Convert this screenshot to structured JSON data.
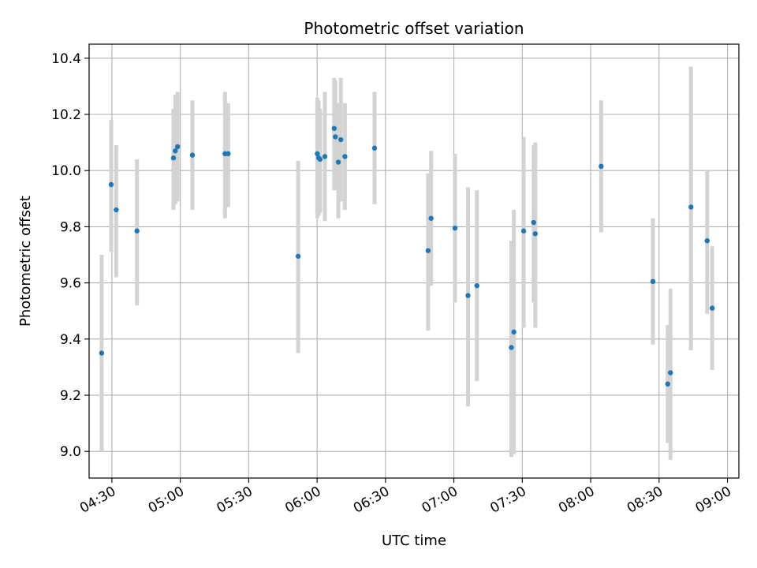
{
  "chart_data": {
    "type": "scatter",
    "title": "Photometric offset variation",
    "xlabel": "UTC time",
    "ylabel": "Photometric offset",
    "xlim": [
      "04:20",
      "09:05"
    ],
    "ylim": [
      8.905,
      10.45
    ],
    "grid": true,
    "xticks": [
      "04:30",
      "05:00",
      "05:30",
      "06:00",
      "06:30",
      "07:00",
      "07:30",
      "08:00",
      "08:30",
      "09:00"
    ],
    "yticks": [
      "9.0",
      "9.2",
      "9.4",
      "9.6",
      "9.8",
      "10.0",
      "10.2",
      "10.4"
    ],
    "series": [
      {
        "name": "offset",
        "marker_color": "#1f77b4",
        "errorbar_color": "#d3d3d3",
        "points": [
          {
            "t": "04:25.5",
            "y": 9.35,
            "lo": 9.0,
            "hi": 9.7
          },
          {
            "t": "04:29.7",
            "y": 9.95,
            "lo": 9.71,
            "hi": 10.18
          },
          {
            "t": "04:31.9",
            "y": 9.86,
            "lo": 9.62,
            "hi": 10.09
          },
          {
            "t": "04:41.0",
            "y": 9.785,
            "lo": 9.52,
            "hi": 10.04
          },
          {
            "t": "04:57.0",
            "y": 10.045,
            "lo": 9.86,
            "hi": 10.22
          },
          {
            "t": "04:57.8",
            "y": 10.07,
            "lo": 9.88,
            "hi": 10.27
          },
          {
            "t": "04:58.8",
            "y": 10.085,
            "lo": 9.89,
            "hi": 10.28
          },
          {
            "t": "05:05.3",
            "y": 10.055,
            "lo": 9.86,
            "hi": 10.25
          },
          {
            "t": "05:19.6",
            "y": 10.06,
            "lo": 9.83,
            "hi": 10.28
          },
          {
            "t": "05:21.0",
            "y": 10.06,
            "lo": 9.87,
            "hi": 10.24
          },
          {
            "t": "05:51.7",
            "y": 9.695,
            "lo": 9.35,
            "hi": 10.035
          },
          {
            "t": "06:00.1",
            "y": 10.06,
            "lo": 9.83,
            "hi": 10.26
          },
          {
            "t": "06:00.7",
            "y": 10.045,
            "lo": 9.84,
            "hi": 10.25
          },
          {
            "t": "06:01.3",
            "y": 10.04,
            "lo": 9.85,
            "hi": 10.22
          },
          {
            "t": "06:03.4",
            "y": 10.05,
            "lo": 9.82,
            "hi": 10.28
          },
          {
            "t": "06:07.5",
            "y": 10.15,
            "lo": 9.93,
            "hi": 10.33
          },
          {
            "t": "06:08.0",
            "y": 10.12,
            "lo": 9.94,
            "hi": 10.32
          },
          {
            "t": "06:09.3",
            "y": 10.03,
            "lo": 9.83,
            "hi": 10.24
          },
          {
            "t": "06:10.4",
            "y": 10.11,
            "lo": 9.89,
            "hi": 10.33
          },
          {
            "t": "06:12.2",
            "y": 10.05,
            "lo": 9.86,
            "hi": 10.24
          },
          {
            "t": "06:25.2",
            "y": 10.08,
            "lo": 9.88,
            "hi": 10.28
          },
          {
            "t": "06:48.7",
            "y": 9.715,
            "lo": 9.43,
            "hi": 9.99
          },
          {
            "t": "06:50.0",
            "y": 9.83,
            "lo": 9.59,
            "hi": 10.07
          },
          {
            "t": "07:00.5",
            "y": 9.795,
            "lo": 9.53,
            "hi": 10.06
          },
          {
            "t": "07:06.2",
            "y": 9.555,
            "lo": 9.16,
            "hi": 9.94
          },
          {
            "t": "07:10.1",
            "y": 9.59,
            "lo": 9.25,
            "hi": 9.93
          },
          {
            "t": "07:25.2",
            "y": 9.37,
            "lo": 8.98,
            "hi": 9.75
          },
          {
            "t": "07:26.3",
            "y": 9.425,
            "lo": 8.99,
            "hi": 9.86
          },
          {
            "t": "07:30.6",
            "y": 9.785,
            "lo": 9.44,
            "hi": 10.12
          },
          {
            "t": "07:35.0",
            "y": 9.815,
            "lo": 9.53,
            "hi": 10.09
          },
          {
            "t": "07:35.7",
            "y": 9.775,
            "lo": 9.44,
            "hi": 10.1
          },
          {
            "t": "08:04.6",
            "y": 10.015,
            "lo": 9.78,
            "hi": 10.25
          },
          {
            "t": "08:27.3",
            "y": 9.605,
            "lo": 9.38,
            "hi": 9.83
          },
          {
            "t": "08:33.8",
            "y": 9.24,
            "lo": 9.03,
            "hi": 9.45
          },
          {
            "t": "08:35.0",
            "y": 9.28,
            "lo": 8.97,
            "hi": 9.58
          },
          {
            "t": "08:44.0",
            "y": 9.87,
            "lo": 9.36,
            "hi": 10.37
          },
          {
            "t": "08:51.1",
            "y": 9.75,
            "lo": 9.49,
            "hi": 10.0
          },
          {
            "t": "08:53.3",
            "y": 9.51,
            "lo": 9.29,
            "hi": 9.73
          }
        ]
      }
    ]
  }
}
